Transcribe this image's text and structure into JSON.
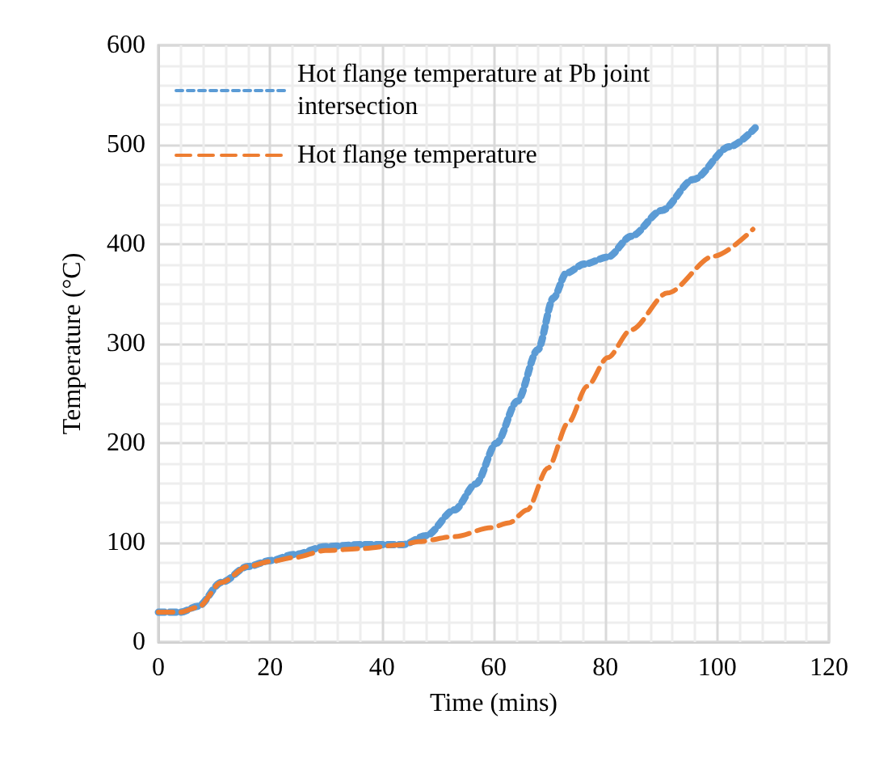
{
  "chart_data": {
    "type": "line",
    "xlabel": "Time (mins)",
    "ylabel": "Temperature (°C)",
    "xlim": [
      0,
      120
    ],
    "xticks": [
      0,
      20,
      40,
      60,
      80,
      100,
      120
    ],
    "ylim": [
      0,
      600
    ],
    "yticks": [
      0,
      100,
      200,
      300,
      400,
      500,
      600
    ],
    "grid": true,
    "legend": "top left",
    "marker": "none",
    "series": [
      {
        "name": "Hot flange temperature at Pb joint intersection",
        "color": "#5b9bd5",
        "line_style": "dotted",
        "x": [
          0,
          3.9,
          7.1,
          11.3,
          16,
          20.1,
          24.3,
          29.9,
          36.4,
          43.8,
          47.9,
          53,
          56.8,
          60.5,
          64.2,
          67.9,
          70.7,
          73,
          76.2,
          80.4,
          84.6,
          90.1,
          95.7,
          102.2,
          106.8
        ],
        "values": [
          30,
          30,
          36,
          60,
          76,
          82,
          88,
          96,
          98,
          98,
          107,
          133,
          159,
          200,
          242,
          294,
          346,
          371,
          380,
          387,
          408,
          434,
          465,
          498,
          517
        ]
      },
      {
        "name": "Hot flange temperature",
        "color": "#ed7d31",
        "line_style": "dashed",
        "x": [
          0,
          3.9,
          7.1,
          11.3,
          16,
          20.1,
          24.3,
          29.9,
          36.4,
          43.8,
          46.5,
          53,
          59.5,
          62.8,
          66,
          69.7,
          73.4,
          76.7,
          80.4,
          84.6,
          91.1,
          99.4,
          106.4
        ],
        "values": [
          30,
          30,
          35,
          60,
          76,
          81,
          85,
          92,
          94,
          98,
          101,
          106,
          115,
          120,
          133,
          175,
          221,
          257,
          286,
          314,
          351,
          388,
          415
        ]
      }
    ]
  }
}
